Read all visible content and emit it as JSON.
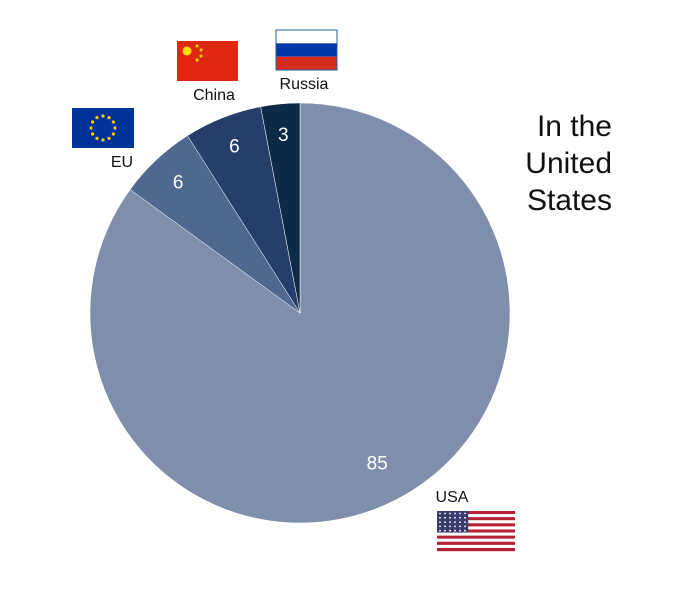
{
  "chart_data": {
    "type": "pie",
    "title": "In the United States",
    "categories": [
      "USA",
      "EU",
      "China",
      "Russia"
    ],
    "values": [
      85,
      6,
      6,
      3
    ],
    "colors": [
      "#7f8fab",
      "#4f6890",
      "#253f6a",
      "#0d2b47"
    ]
  }
}
